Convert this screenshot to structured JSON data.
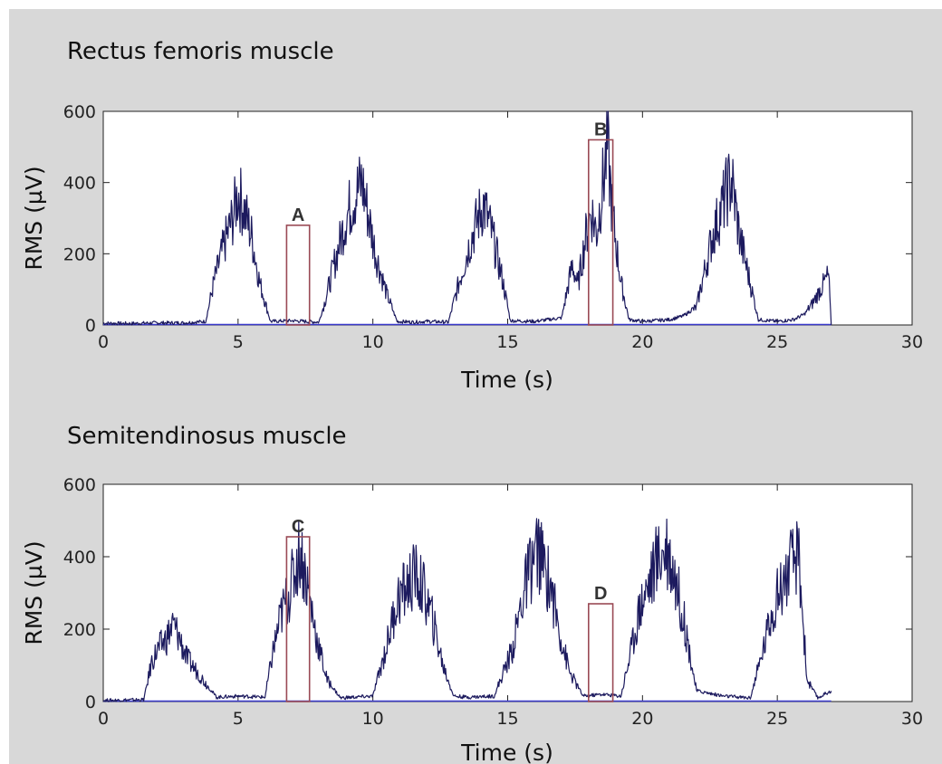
{
  "colors": {
    "figure_background": "#d8d8d8",
    "plot_background": "#ffffff",
    "signal": "#1c1a5e",
    "roi_box": "#9a4a55",
    "baseline": "#3a3acc"
  },
  "chart_data": [
    {
      "type": "line",
      "title": "Rectus femoris muscle",
      "xlabel": "Time (s)",
      "ylabel": "RMS (µV)",
      "xlim": [
        0,
        30
      ],
      "ylim": [
        0,
        600
      ],
      "xticks": [
        0,
        5,
        10,
        15,
        20,
        25,
        30
      ],
      "yticks": [
        0,
        200,
        400,
        600
      ],
      "grid": false,
      "data_end": 27,
      "series": [
        {
          "x": [
            0,
            1,
            2,
            3,
            3.8,
            4.1,
            4.5,
            4.8,
            5.0,
            5.2,
            5.5,
            5.8,
            6.2,
            7,
            8,
            8.2,
            8.6,
            9.0,
            9.3,
            9.6,
            9.8,
            10.1,
            10.5,
            10.9,
            11.5,
            12,
            12.8,
            13.2,
            13.6,
            13.9,
            14.1,
            14.4,
            14.8,
            15.1,
            16,
            17,
            17.4,
            17.6,
            17.9,
            18.1,
            18.3,
            18.5,
            18.7,
            18.9,
            19.2,
            19.5,
            20,
            21,
            21.5,
            22,
            22.3,
            22.6,
            22.9,
            23.1,
            23.3,
            23.6,
            23.9,
            24.3,
            25,
            25.6,
            26,
            26.3,
            26.6,
            26.9,
            27
          ],
          "y": [
            5,
            4,
            6,
            6,
            10,
            120,
            230,
            300,
            370,
            330,
            250,
            120,
            10,
            12,
            8,
            60,
            180,
            300,
            360,
            400,
            320,
            200,
            90,
            10,
            8,
            10,
            8,
            120,
            230,
            300,
            340,
            260,
            130,
            12,
            10,
            20,
            170,
            110,
            250,
            320,
            260,
            380,
            500,
            300,
            120,
            15,
            10,
            15,
            25,
            50,
            150,
            250,
            320,
            370,
            410,
            250,
            150,
            15,
            10,
            15,
            30,
            60,
            100,
            140,
            0
          ]
        }
      ],
      "annotations": [
        {
          "label": "A",
          "x_start": 6.8,
          "x_end": 7.65,
          "y_top": 280
        },
        {
          "label": "B",
          "x_start": 18.0,
          "x_end": 18.9,
          "y_top": 520
        }
      ]
    },
    {
      "type": "line",
      "title": "Semitendinosus muscle",
      "xlabel": "Time (s)",
      "ylabel": "RMS (µV)",
      "xlim": [
        0,
        30
      ],
      "ylim": [
        0,
        600
      ],
      "xticks": [
        0,
        5,
        10,
        15,
        20,
        25,
        30
      ],
      "yticks": [
        0,
        200,
        400,
        600
      ],
      "grid": false,
      "data_end": 27,
      "series": [
        {
          "x": [
            0,
            1.5,
            1.8,
            2.0,
            2.3,
            2.6,
            2.8,
            3.1,
            3.5,
            3.9,
            4.2,
            5,
            6,
            6.3,
            6.6,
            6.9,
            7.1,
            7.3,
            7.6,
            7.9,
            8.3,
            8.8,
            10,
            10.5,
            10.9,
            11.3,
            11.6,
            11.9,
            12.2,
            12.6,
            13,
            13.5,
            14.5,
            15.2,
            15.5,
            15.8,
            16.1,
            16.3,
            16.6,
            16.9,
            17.3,
            17.8,
            18.5,
            19.2,
            19.6,
            19.9,
            20.3,
            20.6,
            20.9,
            21.2,
            21.6,
            22,
            23,
            24,
            24.4,
            24.8,
            25.2,
            25.5,
            25.8,
            26.1,
            26.5,
            27
          ],
          "y": [
            3,
            5,
            110,
            140,
            170,
            210,
            180,
            120,
            80,
            40,
            12,
            15,
            12,
            140,
            240,
            300,
            360,
            420,
            310,
            180,
            60,
            10,
            15,
            150,
            280,
            320,
            350,
            300,
            230,
            100,
            15,
            12,
            15,
            150,
            270,
            360,
            420,
            380,
            320,
            200,
            80,
            15,
            20,
            15,
            150,
            260,
            340,
            400,
            430,
            350,
            200,
            30,
            15,
            10,
            120,
            250,
            330,
            370,
            400,
            60,
            10,
            30
          ]
        }
      ],
      "annotations": [
        {
          "label": "C",
          "x_start": 6.8,
          "x_end": 7.65,
          "y_top": 455
        },
        {
          "label": "D",
          "x_start": 18.0,
          "x_end": 18.9,
          "y_top": 270
        }
      ]
    }
  ]
}
